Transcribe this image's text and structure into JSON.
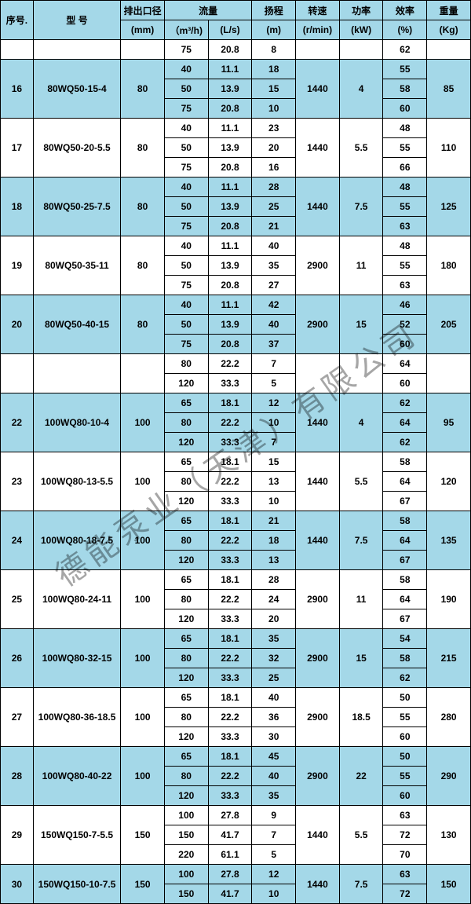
{
  "colors": {
    "header_bg": "#a4d8e8",
    "alt_bg": "#a4d8e8",
    "border": "#000000",
    "bg": "#ffffff"
  },
  "table": {
    "col_widths_pct": [
      6,
      16,
      8,
      8,
      8,
      8,
      8,
      8,
      8,
      8
    ],
    "header_top": [
      "序号.",
      "型 号",
      "排出口径",
      "流量",
      "",
      "扬程",
      "转速",
      "功率",
      "效率",
      "重量"
    ],
    "header_units": [
      "",
      "",
      "(mm)",
      "（m³/h)",
      "(L/s)",
      "(m)",
      "(r/min)",
      "(kW)",
      "(%)",
      "(Kg)"
    ],
    "groups": [
      {
        "alt": false,
        "seq": "",
        "model": "",
        "dia": "",
        "speed": "",
        "power": "",
        "weight": "",
        "rows": [
          [
            "75",
            "20.8",
            "8",
            "62"
          ]
        ]
      },
      {
        "alt": true,
        "seq": "16",
        "model": "80WQ50-15-4",
        "dia": "80",
        "speed": "1440",
        "power": "4",
        "weight": "85",
        "rows": [
          [
            "40",
            "11.1",
            "18",
            "55"
          ],
          [
            "50",
            "13.9",
            "15",
            "58"
          ],
          [
            "75",
            "20.8",
            "10",
            "60"
          ]
        ]
      },
      {
        "alt": false,
        "seq": "17",
        "model": "80WQ50-20-5.5",
        "dia": "80",
        "speed": "1440",
        "power": "5.5",
        "weight": "110",
        "rows": [
          [
            "40",
            "11.1",
            "23",
            "48"
          ],
          [
            "50",
            "13.9",
            "20",
            "55"
          ],
          [
            "75",
            "20.8",
            "16",
            "66"
          ]
        ]
      },
      {
        "alt": true,
        "seq": "18",
        "model": "80WQ50-25-7.5",
        "dia": "80",
        "speed": "1440",
        "power": "7.5",
        "weight": "125",
        "rows": [
          [
            "40",
            "11.1",
            "28",
            "48"
          ],
          [
            "50",
            "13.9",
            "25",
            "55"
          ],
          [
            "75",
            "20.8",
            "21",
            "63"
          ]
        ]
      },
      {
        "alt": false,
        "seq": "19",
        "model": "80WQ50-35-11",
        "dia": "80",
        "speed": "2900",
        "power": "11",
        "weight": "180",
        "rows": [
          [
            "40",
            "11.1",
            "40",
            "48"
          ],
          [
            "50",
            "13.9",
            "35",
            "55"
          ],
          [
            "75",
            "20.8",
            "27",
            "63"
          ]
        ]
      },
      {
        "alt": true,
        "seq": "20",
        "model": "80WQ50-40-15",
        "dia": "80",
        "speed": "2900",
        "power": "15",
        "weight": "205",
        "rows": [
          [
            "40",
            "11.1",
            "42",
            "46"
          ],
          [
            "50",
            "13.9",
            "40",
            "52"
          ],
          [
            "75",
            "20.8",
            "37",
            "60"
          ]
        ]
      },
      {
        "alt": false,
        "seq": "",
        "model": "",
        "dia": "",
        "speed": "",
        "power": "",
        "weight": "",
        "rows": [
          [
            "80",
            "22.2",
            "7",
            "64"
          ],
          [
            "120",
            "33.3",
            "5",
            "60"
          ]
        ]
      },
      {
        "alt": true,
        "seq": "22",
        "model": "100WQ80-10-4",
        "dia": "100",
        "speed": "1440",
        "power": "4",
        "weight": "95",
        "rows": [
          [
            "65",
            "18.1",
            "12",
            "62"
          ],
          [
            "80",
            "22.2",
            "10",
            "64"
          ],
          [
            "120",
            "33.3",
            "7",
            "62"
          ]
        ]
      },
      {
        "alt": false,
        "seq": "23",
        "model": "100WQ80-13-5.5",
        "dia": "100",
        "speed": "1440",
        "power": "5.5",
        "weight": "120",
        "rows": [
          [
            "65",
            "18.1",
            "15",
            "58"
          ],
          [
            "80",
            "22.2",
            "13",
            "64"
          ],
          [
            "120",
            "33.3",
            "10",
            "67"
          ]
        ]
      },
      {
        "alt": true,
        "seq": "24",
        "model": "100WQ80-18-7.5",
        "dia": "100",
        "speed": "1440",
        "power": "7.5",
        "weight": "135",
        "rows": [
          [
            "65",
            "18.1",
            "21",
            "58"
          ],
          [
            "80",
            "22.2",
            "18",
            "64"
          ],
          [
            "120",
            "33.3",
            "13",
            "67"
          ]
        ]
      },
      {
        "alt": false,
        "seq": "25",
        "model": "100WQ80-24-11",
        "dia": "100",
        "speed": "2900",
        "power": "11",
        "weight": "190",
        "rows": [
          [
            "65",
            "18.1",
            "28",
            "58"
          ],
          [
            "80",
            "22.2",
            "24",
            "64"
          ],
          [
            "120",
            "33.3",
            "20",
            "67"
          ]
        ]
      },
      {
        "alt": true,
        "seq": "26",
        "model": "100WQ80-32-15",
        "dia": "100",
        "speed": "2900",
        "power": "15",
        "weight": "215",
        "rows": [
          [
            "65",
            "18.1",
            "35",
            "54"
          ],
          [
            "80",
            "22.2",
            "32",
            "58"
          ],
          [
            "120",
            "33.3",
            "25",
            "62"
          ]
        ]
      },
      {
        "alt": false,
        "seq": "27",
        "model": "100WQ80-36-18.5",
        "dia": "100",
        "speed": "2900",
        "power": "18.5",
        "weight": "280",
        "rows": [
          [
            "65",
            "18.1",
            "40",
            "50"
          ],
          [
            "80",
            "22.2",
            "36",
            "55"
          ],
          [
            "120",
            "33.3",
            "30",
            "60"
          ]
        ]
      },
      {
        "alt": true,
        "seq": "28",
        "model": "100WQ80-40-22",
        "dia": "100",
        "speed": "2900",
        "power": "22",
        "weight": "290",
        "rows": [
          [
            "65",
            "18.1",
            "45",
            "50"
          ],
          [
            "80",
            "22.2",
            "40",
            "55"
          ],
          [
            "120",
            "33.3",
            "35",
            "60"
          ]
        ]
      },
      {
        "alt": false,
        "seq": "29",
        "model": "150WQ150-7-5.5",
        "dia": "150",
        "speed": "1440",
        "power": "5.5",
        "weight": "130",
        "rows": [
          [
            "100",
            "27.8",
            "9",
            "63"
          ],
          [
            "150",
            "41.7",
            "7",
            "72"
          ],
          [
            "220",
            "61.1",
            "5",
            "70"
          ]
        ]
      },
      {
        "alt": true,
        "seq": "30",
        "model": "150WQ150-10-7.5",
        "dia": "150",
        "speed": "1440",
        "power": "7.5",
        "weight": "150",
        "rows": [
          [
            "100",
            "27.8",
            "12",
            "63"
          ],
          [
            "150",
            "41.7",
            "10",
            "72"
          ]
        ]
      }
    ]
  },
  "watermark": "德能泵业（天津）有限公司"
}
